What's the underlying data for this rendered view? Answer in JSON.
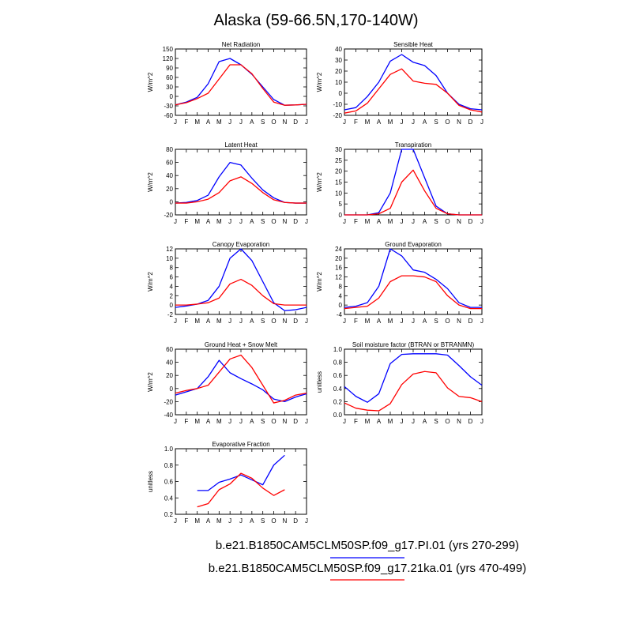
{
  "figure": {
    "title": "Alaska (59-66.5N,170-140W)"
  },
  "colors": {
    "case1": "#0000ff",
    "case2": "#ff0000",
    "frame": "#000000"
  },
  "legend": [
    {
      "name": "b.e21.B1850CAM5CLM50SP.f09_g17.PI.01 (yrs 270-299)",
      "color": "#0000ff"
    },
    {
      "name": "b.e21.B1850CAM5CLM50SP.f09_g17.21ka.01 (yrs 470-499)",
      "color": "#ff0000"
    }
  ],
  "chart_data": [
    {
      "type": "line",
      "title": "Net Radiation",
      "ylabel": "W/m^2",
      "categories": [
        "J",
        "F",
        "M",
        "A",
        "M",
        "J",
        "J",
        "A",
        "S",
        "O",
        "N",
        "D",
        "J"
      ],
      "ylim": [
        -60,
        150
      ],
      "yticks": [
        -60,
        -30,
        0,
        30,
        60,
        90,
        120,
        150
      ],
      "series": [
        {
          "values": [
            -27,
            -18,
            -3,
            40,
            110,
            120,
            100,
            70,
            30,
            -10,
            -28,
            -27,
            -25
          ]
        },
        {
          "values": [
            -27,
            -20,
            -7,
            10,
            55,
            100,
            100,
            72,
            25,
            -18,
            -28,
            -27,
            -25
          ]
        }
      ]
    },
    {
      "type": "line",
      "title": "Sensible Heat",
      "ylabel": "W/m^2",
      "categories": [
        "J",
        "F",
        "M",
        "A",
        "M",
        "J",
        "J",
        "A",
        "S",
        "O",
        "N",
        "D",
        "J"
      ],
      "ylim": [
        -20,
        40
      ],
      "yticks": [
        -20,
        -10,
        0,
        10,
        20,
        30,
        40
      ],
      "series": [
        {
          "values": [
            -15,
            -13,
            -3,
            10,
            29,
            35,
            28,
            25,
            16,
            0,
            -10,
            -14,
            -15
          ]
        },
        {
          "values": [
            -18,
            -16,
            -9,
            4,
            17,
            22,
            11,
            9,
            8,
            0,
            -11,
            -15,
            -17
          ]
        }
      ]
    },
    {
      "type": "line",
      "title": "Latent Heat",
      "ylabel": "W/m^2",
      "categories": [
        "J",
        "F",
        "M",
        "A",
        "M",
        "J",
        "J",
        "A",
        "S",
        "O",
        "N",
        "D",
        "J"
      ],
      "ylim": [
        -20,
        80
      ],
      "yticks": [
        -20,
        0,
        20,
        40,
        60,
        80
      ],
      "series": [
        {
          "values": [
            -2,
            -1,
            2,
            10,
            38,
            60,
            56,
            36,
            18,
            6,
            -1,
            -2,
            -2
          ]
        },
        {
          "values": [
            -2,
            -2,
            0,
            4,
            14,
            32,
            38,
            28,
            14,
            3,
            -1,
            -2,
            -2
          ]
        }
      ]
    },
    {
      "type": "line",
      "title": "Transpiration",
      "ylabel": "W/m^2",
      "categories": [
        "J",
        "F",
        "M",
        "A",
        "M",
        "J",
        "J",
        "A",
        "S",
        "O",
        "N",
        "D",
        "J"
      ],
      "ylim": [
        0,
        30
      ],
      "yticks": [
        0,
        5,
        10,
        15,
        20,
        25,
        30
      ],
      "series": [
        {
          "values": [
            0,
            0,
            0,
            1,
            10,
            30,
            30,
            17,
            4,
            0.5,
            0,
            0,
            0
          ]
        },
        {
          "values": [
            0,
            0,
            0,
            0.5,
            3,
            15,
            20.5,
            11,
            3,
            0.5,
            0,
            0,
            0
          ]
        }
      ]
    },
    {
      "type": "line",
      "title": "Canopy Evaporation",
      "ylabel": "W/m^2",
      "categories": [
        "J",
        "F",
        "M",
        "A",
        "M",
        "J",
        "J",
        "A",
        "S",
        "O",
        "N",
        "D",
        "J"
      ],
      "ylim": [
        -2,
        12
      ],
      "yticks": [
        -2,
        0,
        2,
        4,
        6,
        8,
        10,
        12
      ],
      "series": [
        {
          "values": [
            -0.5,
            -0.2,
            0.2,
            1,
            4,
            10,
            12,
            9.5,
            5,
            0.5,
            -1.2,
            -1,
            -0.5
          ]
        },
        {
          "values": [
            0,
            0,
            0.2,
            0.5,
            1.5,
            4.5,
            5.5,
            4.2,
            2,
            0.3,
            0,
            0,
            0
          ]
        }
      ]
    },
    {
      "type": "line",
      "title": "Ground Evaporation",
      "ylabel": "W/m^2",
      "categories": [
        "J",
        "F",
        "M",
        "A",
        "M",
        "J",
        "J",
        "A",
        "S",
        "O",
        "N",
        "D",
        "J"
      ],
      "ylim": [
        -4,
        24
      ],
      "yticks": [
        -4,
        0,
        4,
        8,
        12,
        16,
        20,
        24
      ],
      "series": [
        {
          "values": [
            -1,
            -0.5,
            1,
            8,
            24,
            21,
            15,
            14,
            11,
            7,
            1,
            -1,
            -1
          ]
        },
        {
          "values": [
            -1.5,
            -1,
            -0.5,
            3,
            10,
            12.5,
            12.5,
            12,
            10,
            4,
            0,
            -1.5,
            -1.5
          ]
        }
      ]
    },
    {
      "type": "line",
      "title": "Ground Heat + Snow Melt",
      "ylabel": "W/m^2",
      "categories": [
        "J",
        "F",
        "M",
        "A",
        "M",
        "J",
        "J",
        "A",
        "S",
        "O",
        "N",
        "D",
        "J"
      ],
      "ylim": [
        -40,
        60
      ],
      "yticks": [
        -40,
        -20,
        0,
        20,
        40,
        60
      ],
      "series": [
        {
          "values": [
            -10,
            -5,
            0,
            18,
            43,
            24,
            15,
            7,
            -2,
            -16,
            -20,
            -13,
            -8
          ]
        },
        {
          "values": [
            -7,
            -3,
            0,
            5,
            25,
            45,
            51,
            32,
            5,
            -22,
            -18,
            -10,
            -7
          ]
        }
      ]
    },
    {
      "type": "line",
      "title": "Soil moisture factor (BTRAN or BTRANMN)",
      "ylabel": "unitless",
      "categories": [
        "J",
        "F",
        "M",
        "A",
        "M",
        "J",
        "J",
        "A",
        "S",
        "O",
        "N",
        "D",
        "J"
      ],
      "ylim": [
        0.0,
        1.0
      ],
      "yticks": [
        0.0,
        0.2,
        0.4,
        0.6,
        0.8,
        1.0
      ],
      "series": [
        {
          "values": [
            0.43,
            0.28,
            0.19,
            0.32,
            0.78,
            0.92,
            0.93,
            0.93,
            0.93,
            0.91,
            0.75,
            0.58,
            0.45
          ]
        },
        {
          "values": [
            0.18,
            0.1,
            0.07,
            0.06,
            0.17,
            0.46,
            0.62,
            0.66,
            0.64,
            0.41,
            0.28,
            0.26,
            0.2
          ]
        }
      ]
    },
    {
      "type": "line",
      "title": "Evaporative Fraction",
      "ylabel": "unitless",
      "categories": [
        "J",
        "F",
        "M",
        "A",
        "M",
        "J",
        "J",
        "A",
        "S",
        "O",
        "N",
        "D",
        "J"
      ],
      "ylim": [
        0.2,
        1.0
      ],
      "yticks": [
        0.2,
        0.4,
        0.6,
        0.8,
        1.0
      ],
      "series": [
        {
          "values": [
            null,
            null,
            0.49,
            0.49,
            0.59,
            0.63,
            0.68,
            0.62,
            0.56,
            0.8,
            0.92,
            null,
            null
          ]
        },
        {
          "values": [
            null,
            null,
            0.29,
            0.33,
            0.5,
            0.57,
            0.7,
            0.64,
            0.52,
            0.43,
            0.5,
            null,
            null
          ]
        }
      ]
    }
  ]
}
